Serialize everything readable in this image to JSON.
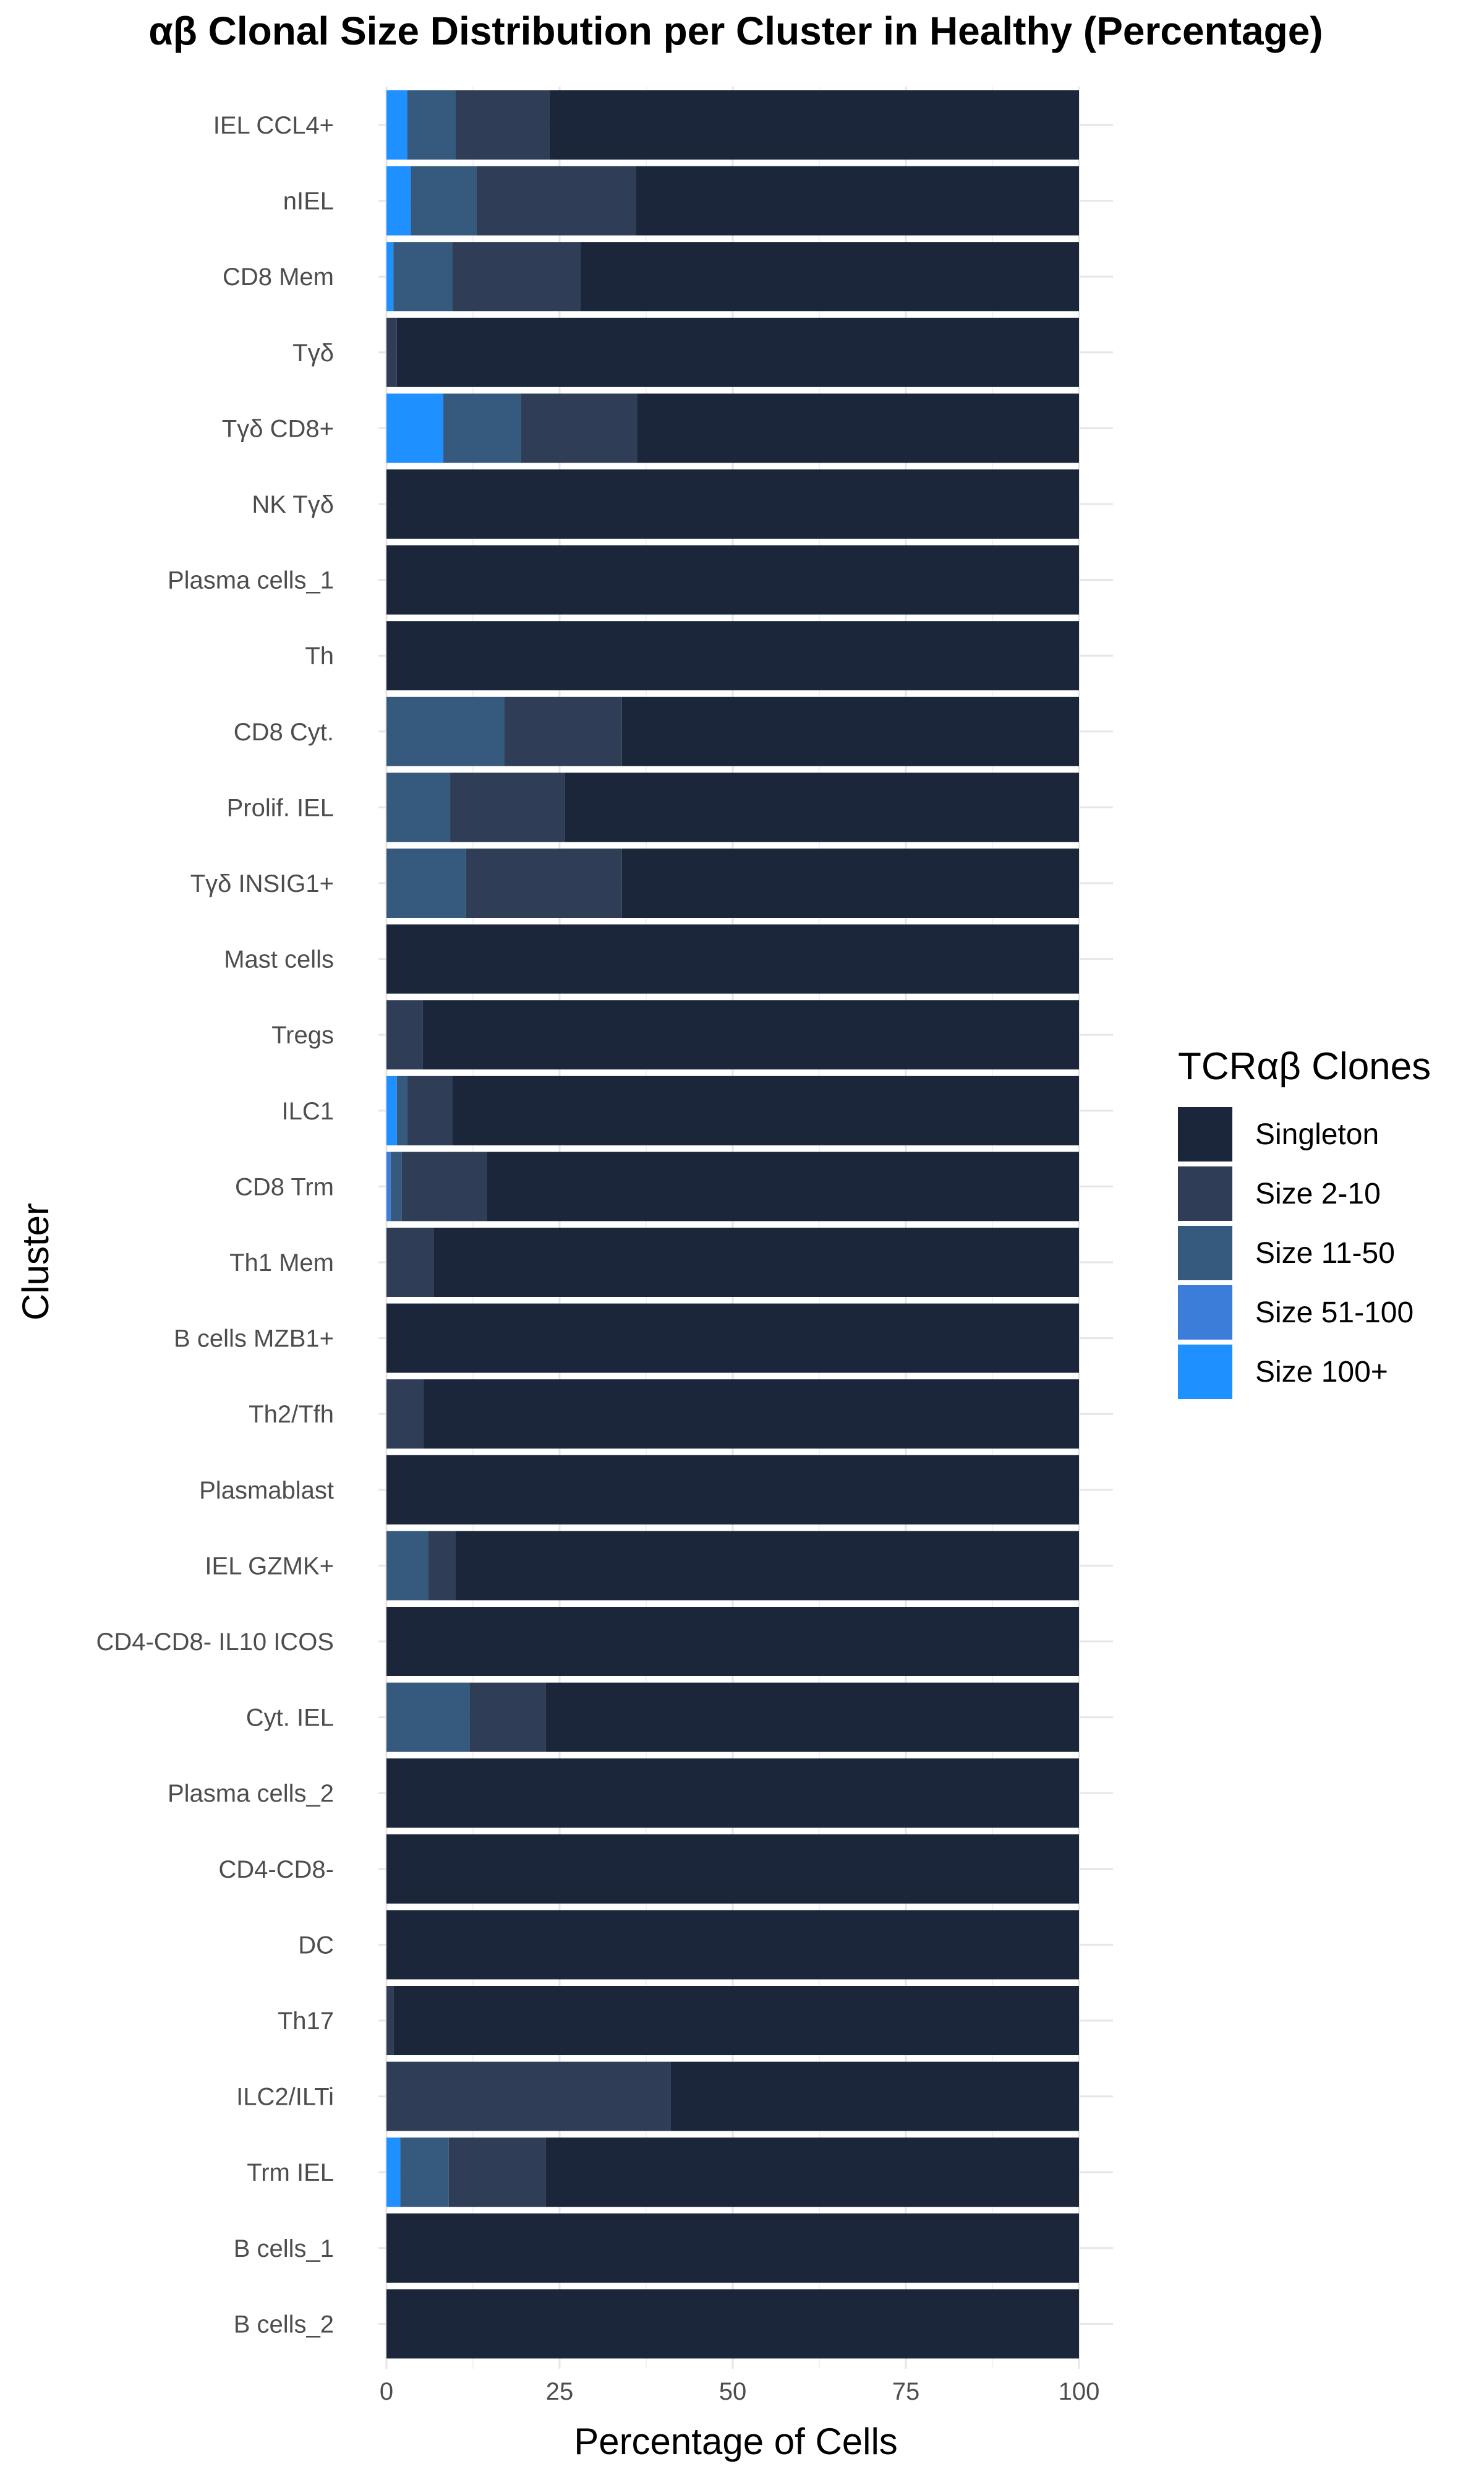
{
  "chart_data": {
    "type": "bar",
    "orientation": "horizontal",
    "stacked": true,
    "title": "αβ Clonal Size Distribution per Cluster in Healthy (Percentage)",
    "xlabel": "Percentage of Cells",
    "ylabel": "Cluster",
    "xlim": [
      0,
      100
    ],
    "x_ticks": [
      "0",
      "25",
      "50",
      "75",
      "100"
    ],
    "grid": true,
    "legend_position": "right",
    "legend_title": "TCRαβ Clones",
    "categories": [
      "IEL CCL4+",
      "nIEL",
      "CD8 Mem",
      "Tγδ",
      "Tγδ CD8+",
      "NK Tγδ",
      "Plasma cells_1",
      "Th",
      "CD8 Cyt.",
      "Prolif. IEL",
      "Tγδ INSIG1+",
      "Mast cells",
      "Tregs",
      "ILC1",
      "CD8 Trm",
      "Th1 Mem",
      "B cells MZB1+",
      "Th2/Tfh",
      "Plasmablast",
      "IEL GZMK+",
      "CD4-CD8- IL10 ICOS",
      "Cyt. IEL",
      "Plasma cells_2",
      "CD4-CD8-",
      "DC",
      "Th17",
      "ILC2/ILTi",
      "Trm IEL",
      "B cells_1",
      "B cells_2"
    ],
    "stack_order": [
      "Size 100+",
      "Size 51-100",
      "Size 11-50",
      "Size 2-10",
      "Singleton"
    ],
    "series": [
      {
        "name": "Singleton",
        "color": "#1b263b",
        "values": [
          76.5,
          64.0,
          72.0,
          98.5,
          63.8,
          100,
          100,
          100,
          66.0,
          74.2,
          66.0,
          100,
          94.8,
          90.5,
          85.5,
          93.2,
          100,
          94.6,
          100,
          90.0,
          100,
          77.0,
          100,
          100,
          100,
          99.0,
          59.0,
          77.0,
          100,
          100
        ]
      },
      {
        "name": "Size 2-10",
        "color": "#2f3e56",
        "values": [
          13.5,
          23.0,
          18.5,
          1.5,
          16.8,
          0,
          0,
          0,
          17.0,
          16.6,
          22.5,
          0,
          5.2,
          6.5,
          12.3,
          6.8,
          0,
          5.4,
          0,
          4.0,
          0,
          11.0,
          0,
          0,
          0,
          1.0,
          41.0,
          14.0,
          0,
          0
        ]
      },
      {
        "name": "Size 11-50",
        "color": "#355a7e",
        "values": [
          7.0,
          9.5,
          8.5,
          0,
          11.2,
          0,
          0,
          0,
          17.0,
          9.2,
          11.5,
          0,
          0,
          1.5,
          1.6,
          0,
          0,
          0,
          0,
          6.0,
          0,
          12.0,
          0,
          0,
          0,
          0,
          0,
          7.0,
          0,
          0
        ]
      },
      {
        "name": "Size 51-100",
        "color": "#3b7dd8",
        "values": [
          0,
          0,
          0,
          0,
          0,
          0,
          0,
          0,
          0,
          0,
          0,
          0,
          0,
          0,
          0.6,
          0,
          0,
          0,
          0,
          0,
          0,
          0,
          0,
          0,
          0,
          0,
          0,
          0,
          0,
          0
        ]
      },
      {
        "name": "Size 100+",
        "color": "#1e90ff",
        "values": [
          3.0,
          3.5,
          1.0,
          0,
          8.2,
          0,
          0,
          0,
          0,
          0,
          0,
          0,
          0,
          1.5,
          0,
          0,
          0,
          0,
          0,
          0,
          0,
          0,
          0,
          0,
          0,
          0,
          0,
          2.0,
          0,
          0
        ]
      }
    ]
  }
}
